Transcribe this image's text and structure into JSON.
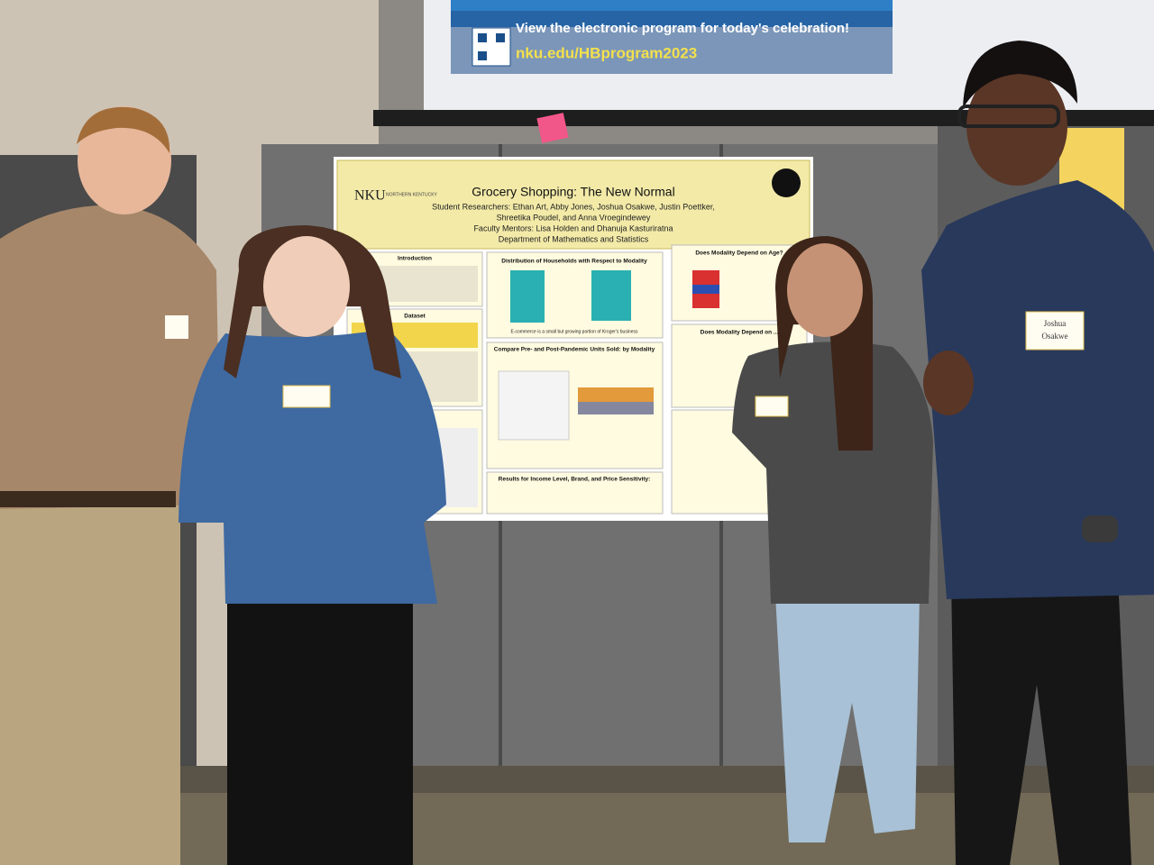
{
  "screen": {
    "message": "View the electronic program for today's celebration!",
    "url": "nku.edu/HBprogram2023"
  },
  "poster": {
    "logo": "NKU",
    "logo_text": "NORTHERN KENTUCKY",
    "title": "Grocery Shopping: The New Normal",
    "researchers_line1": "Student Researchers: Ethan Art, Abby Jones, Joshua Osakwe, Justin Poettker,",
    "researchers_line2": "Shreetika Poudel, and Anna Vroegindewey",
    "mentors": "Faculty Mentors: Lisa Holden and Dhanuja Kasturiratna",
    "department": "Department of Mathematics and Statistics",
    "sections": [
      "Introduction",
      "Dataset",
      "Distribution of Households with Respect to Modality",
      "Compare Pre- and Post-Pandemic Units Sold: by Modality",
      "Does Modality Depend on Age?",
      "Does Modality Depend on ...",
      "Results for Income Level, Brand, and Price Sensitivity:"
    ],
    "caption": "E-commerce is a small but growing portion of Kroger's business"
  },
  "name_tag": {
    "first": "Joshua",
    "last": "Osakwe"
  }
}
